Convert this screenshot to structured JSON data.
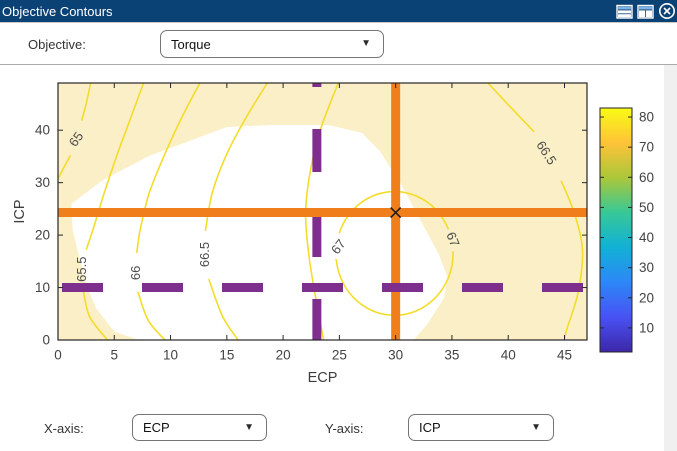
{
  "window": {
    "title": "Objective Contours",
    "titlebar_icons": [
      "split-horizontal",
      "split-vertical",
      "close"
    ],
    "titlebar_color": "#0b4275"
  },
  "controls": {
    "objective": {
      "label": "Objective:",
      "value": "Torque"
    },
    "x_axis": {
      "label": "X-axis:",
      "value": "ECP"
    },
    "y_axis": {
      "label": "Y-axis:",
      "value": "ICP"
    }
  },
  "chart_data": {
    "type": "contour",
    "xlabel": "ECP",
    "ylabel": "ICP",
    "xlim": [
      0,
      47
    ],
    "ylim": [
      0,
      49
    ],
    "xticks": [
      0,
      5,
      10,
      15,
      20,
      25,
      30,
      35,
      40,
      45
    ],
    "yticks": [
      0,
      10,
      20,
      30,
      40
    ],
    "grid": false,
    "infeasible_shade_color": "#faefc6",
    "feasible_region_color": "#ffffff",
    "contour_line_color": "#f4dc2a",
    "contour_label_color": "#4d4d4d",
    "feasible_region_polygon": [
      [
        1.2,
        26
      ],
      [
        4,
        30.5
      ],
      [
        8,
        35
      ],
      [
        15,
        40.6
      ],
      [
        19,
        41
      ],
      [
        24,
        41
      ],
      [
        27,
        39.5
      ],
      [
        28.6,
        36
      ],
      [
        30.4,
        30
      ],
      [
        32.3,
        22.5
      ],
      [
        33.8,
        16.5
      ],
      [
        34.6,
        12
      ],
      [
        34.3,
        8
      ],
      [
        32.8,
        3
      ],
      [
        31.6,
        0
      ],
      [
        7.2,
        0
      ],
      [
        5,
        1.6
      ],
      [
        3.4,
        6
      ],
      [
        2.6,
        10
      ],
      [
        1.8,
        16.5
      ],
      [
        1.3,
        21
      ]
    ],
    "contours": [
      {
        "level": 65,
        "label": {
          "text": "65",
          "x": 1.6,
          "y": 38.3,
          "rot": -55
        },
        "segments": [
          [
            [
              2.9,
              49
            ],
            [
              2.5,
              45
            ],
            [
              2.1,
              41.8
            ]
          ],
          [
            [
              1.1,
              35.2
            ],
            [
              0.5,
              32.8
            ],
            [
              0,
              30.8
            ]
          ]
        ]
      },
      {
        "level": 65.5,
        "label": {
          "text": "65.5",
          "x": 2.1,
          "y": 13.5,
          "rot": -90
        },
        "segments": [
          [
            [
              7.6,
              49
            ],
            [
              6.4,
              42
            ],
            [
              5.2,
              35
            ],
            [
              4.1,
              28
            ],
            [
              3.1,
              21
            ],
            [
              2.5,
              17.2
            ]
          ],
          [
            [
              2.2,
              10
            ],
            [
              2.8,
              4.5
            ],
            [
              4.4,
              0
            ]
          ]
        ]
      },
      {
        "level": 66,
        "label": {
          "text": "66",
          "x": 6.9,
          "y": 12.8,
          "rot": -90
        },
        "segments": [
          [
            [
              12.6,
              49
            ],
            [
              10.9,
              42
            ],
            [
              9.4,
              35
            ],
            [
              8.1,
              28
            ],
            [
              7.3,
              21
            ],
            [
              7.0,
              16.6
            ]
          ],
          [
            [
              7.1,
              9.2
            ],
            [
              8.0,
              3.8
            ],
            [
              9.5,
              0
            ]
          ]
        ]
      },
      {
        "level": 66.5,
        "label": {
          "text": "66.5",
          "x": 13.0,
          "y": 16.3,
          "rot": -90
        },
        "segments": [
          [
            [
              18.6,
              49
            ],
            [
              16.6,
              42
            ],
            [
              14.9,
              35
            ],
            [
              13.7,
              28
            ],
            [
              13.1,
              20.8
            ]
          ],
          [
            [
              13.4,
              11.6
            ],
            [
              14.6,
              4.6
            ],
            [
              16.0,
              0
            ]
          ]
        ]
      },
      {
        "level": 67,
        "label": null,
        "segments": [
          [
            [
              24.9,
              49
            ],
            [
              23.3,
              40
            ],
            [
              22.4,
              32
            ],
            [
              22.0,
              24
            ],
            [
              22.3,
              16
            ],
            [
              22.9,
              8
            ],
            [
              23.6,
              0
            ]
          ]
        ]
      },
      {
        "level": 66.5,
        "label": {
          "text": "66.5",
          "x": 43.4,
          "y": 35.7,
          "rot": 57
        },
        "segments": [
          [
            [
              38.2,
              49
            ],
            [
              40.6,
              43.5
            ],
            [
              42.3,
              39.7
            ]
          ],
          [
            [
              44.7,
              30.4
            ],
            [
              45.9,
              24
            ],
            [
              46.6,
              17
            ],
            [
              46.2,
              9
            ],
            [
              45.2,
              2
            ],
            [
              45.0,
              0
            ]
          ]
        ]
      }
    ],
    "closed_contour": {
      "level": 67,
      "cx": 29.9,
      "cy": 16.5,
      "rx": 5.2,
      "ry": 11.8,
      "labels": [
        {
          "text": "67",
          "x": 24.9,
          "y": 17.8,
          "rot": -52,
          "bg": "#ffffff"
        },
        {
          "text": "67",
          "x": 35.1,
          "y": 19.2,
          "rot": 68,
          "bg": "#faefc6"
        }
      ]
    },
    "crosshair": {
      "x": 30,
      "y": 24.3,
      "color": "#f07e1a",
      "marker": "x",
      "marker_color": "#1a1a1a"
    },
    "bound_lines": {
      "vertical_x": 23,
      "horizontal_y": 10,
      "color": "#7e2f8e",
      "style": "dashed"
    },
    "axis_color": "#262626",
    "tick_label_color": "#424242",
    "colorbar": {
      "min": 2,
      "max": 83,
      "ticks": [
        10,
        20,
        30,
        40,
        50,
        60,
        70,
        80
      ],
      "colormap": "parula",
      "colors_top_to_bottom": [
        "#F9FB14",
        "#FEC338",
        "#ABC739",
        "#37C897",
        "#11B1D6",
        "#2D87F7",
        "#4852F4",
        "#3D26A8"
      ]
    }
  }
}
